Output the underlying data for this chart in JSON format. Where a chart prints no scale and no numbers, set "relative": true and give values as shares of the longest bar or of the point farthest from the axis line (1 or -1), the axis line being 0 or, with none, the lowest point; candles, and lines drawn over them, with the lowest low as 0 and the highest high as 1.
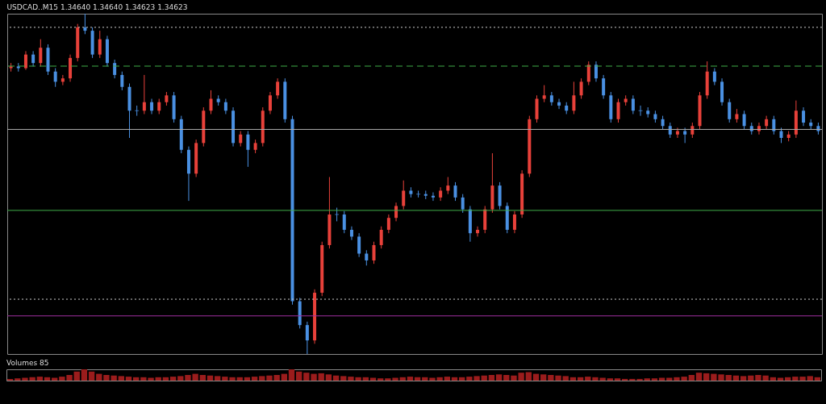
{
  "chart_data": [
    {
      "type": "candlestick",
      "title": "USDCAD..M15 1.34640 1.34640 1.34623 1.34623",
      "relative": true,
      "categories": [
        null,
        null,
        null,
        null,
        null,
        null,
        null,
        null,
        null,
        null,
        null,
        null,
        null,
        null,
        null,
        null,
        null,
        null,
        null,
        null,
        null,
        null,
        null,
        null,
        null,
        null,
        null,
        null,
        null,
        null,
        null,
        null,
        null,
        null,
        null,
        null,
        null,
        null,
        null,
        null,
        null,
        null,
        null,
        null,
        null,
        null,
        null,
        null,
        null,
        null,
        null,
        null,
        null,
        null,
        null,
        null,
        null,
        null,
        null,
        null,
        null,
        null,
        null,
        null,
        null,
        null,
        null,
        null,
        null,
        null,
        null,
        null,
        null,
        null,
        null,
        null,
        null,
        null,
        null,
        null,
        null,
        null,
        null,
        null,
        null,
        null,
        null,
        null,
        null,
        null,
        null,
        null,
        null,
        null,
        null,
        null,
        null,
        null,
        null,
        null,
        null,
        null,
        null,
        null,
        null,
        null,
        null,
        null,
        null,
        null
      ],
      "ohlc": [
        [
          0.84,
          0.855,
          0.83,
          0.845
        ],
        [
          0.845,
          0.855,
          0.83,
          0.84
        ],
        [
          0.84,
          0.89,
          0.835,
          0.88
        ],
        [
          0.88,
          0.89,
          0.845,
          0.855
        ],
        [
          0.855,
          0.925,
          0.845,
          0.9
        ],
        [
          0.9,
          0.91,
          0.82,
          0.83
        ],
        [
          0.83,
          0.84,
          0.785,
          0.8
        ],
        [
          0.8,
          0.82,
          0.79,
          0.81
        ],
        [
          0.81,
          0.88,
          0.8,
          0.87
        ],
        [
          0.87,
          0.97,
          0.86,
          0.96
        ],
        [
          0.96,
          1,
          0.94,
          0.95
        ],
        [
          0.95,
          0.96,
          0.87,
          0.88
        ],
        [
          0.88,
          0.95,
          0.87,
          0.925
        ],
        [
          0.925,
          0.935,
          0.845,
          0.855
        ],
        [
          0.855,
          0.865,
          0.81,
          0.82
        ],
        [
          0.82,
          0.83,
          0.775,
          0.785
        ],
        [
          0.785,
          0.795,
          0.635,
          0.715
        ],
        [
          0.715,
          0.73,
          0.7,
          0.715
        ],
        [
          0.715,
          0.82,
          0.705,
          0.74
        ],
        [
          0.74,
          0.75,
          0.705,
          0.715
        ],
        [
          0.715,
          0.75,
          0.705,
          0.74
        ],
        [
          0.74,
          0.77,
          0.73,
          0.76
        ],
        [
          0.76,
          0.77,
          0.68,
          0.69
        ],
        [
          0.69,
          0.7,
          0.59,
          0.6
        ],
        [
          0.6,
          0.61,
          0.45,
          0.53
        ],
        [
          0.53,
          0.63,
          0.52,
          0.62
        ],
        [
          0.62,
          0.725,
          0.61,
          0.715
        ],
        [
          0.715,
          0.775,
          0.705,
          0.75
        ],
        [
          0.75,
          0.76,
          0.73,
          0.74
        ],
        [
          0.74,
          0.75,
          0.705,
          0.715
        ],
        [
          0.715,
          0.725,
          0.61,
          0.62
        ],
        [
          0.62,
          0.655,
          0.61,
          0.645
        ],
        [
          0.645,
          0.655,
          0.55,
          0.6
        ],
        [
          0.6,
          0.63,
          0.59,
          0.62
        ],
        [
          0.62,
          0.725,
          0.61,
          0.715
        ],
        [
          0.715,
          0.77,
          0.705,
          0.76
        ],
        [
          0.76,
          0.81,
          0.75,
          0.8
        ],
        [
          0.8,
          0.81,
          0.68,
          0.69
        ],
        [
          0.69,
          0.7,
          0.145,
          0.155
        ],
        [
          0.155,
          0.165,
          0.075,
          0.085
        ],
        [
          0.085,
          0.095,
          0,
          0.04
        ],
        [
          0.04,
          0.19,
          0.03,
          0.18
        ],
        [
          0.18,
          0.33,
          0.17,
          0.32
        ],
        [
          0.32,
          0.52,
          0.31,
          0.41
        ],
        [
          0.41,
          0.43,
          0.39,
          0.41
        ],
        [
          0.41,
          0.42,
          0.355,
          0.365
        ],
        [
          0.365,
          0.375,
          0.335,
          0.345
        ],
        [
          0.345,
          0.355,
          0.285,
          0.295
        ],
        [
          0.295,
          0.305,
          0.26,
          0.275
        ],
        [
          0.275,
          0.33,
          0.265,
          0.32
        ],
        [
          0.32,
          0.375,
          0.31,
          0.365
        ],
        [
          0.365,
          0.41,
          0.355,
          0.4
        ],
        [
          0.4,
          0.445,
          0.39,
          0.435
        ],
        [
          0.435,
          0.51,
          0.425,
          0.48
        ],
        [
          0.48,
          0.49,
          0.46,
          0.47
        ],
        [
          0.47,
          0.48,
          0.46,
          0.47
        ],
        [
          0.47,
          0.48,
          0.455,
          0.465
        ],
        [
          0.465,
          0.475,
          0.45,
          0.46
        ],
        [
          0.46,
          0.49,
          0.45,
          0.48
        ],
        [
          0.48,
          0.52,
          0.47,
          0.495
        ],
        [
          0.495,
          0.505,
          0.45,
          0.46
        ],
        [
          0.46,
          0.47,
          0.415,
          0.425
        ],
        [
          0.425,
          0.435,
          0.33,
          0.355
        ],
        [
          0.355,
          0.375,
          0.345,
          0.365
        ],
        [
          0.365,
          0.435,
          0.355,
          0.425
        ],
        [
          0.425,
          0.59,
          0.415,
          0.495
        ],
        [
          0.495,
          0.505,
          0.425,
          0.435
        ],
        [
          0.435,
          0.445,
          0.355,
          0.365
        ],
        [
          0.365,
          0.42,
          0.355,
          0.41
        ],
        [
          0.41,
          0.54,
          0.4,
          0.53
        ],
        [
          0.53,
          0.7,
          0.52,
          0.69
        ],
        [
          0.69,
          0.76,
          0.68,
          0.75
        ],
        [
          0.75,
          0.79,
          0.74,
          0.76
        ],
        [
          0.76,
          0.77,
          0.73,
          0.74
        ],
        [
          0.74,
          0.75,
          0.72,
          0.73
        ],
        [
          0.73,
          0.74,
          0.705,
          0.715
        ],
        [
          0.715,
          0.8,
          0.705,
          0.76
        ],
        [
          0.76,
          0.81,
          0.75,
          0.8
        ],
        [
          0.8,
          0.86,
          0.79,
          0.85
        ],
        [
          0.85,
          0.86,
          0.8,
          0.81
        ],
        [
          0.81,
          0.82,
          0.75,
          0.76
        ],
        [
          0.76,
          0.77,
          0.68,
          0.69
        ],
        [
          0.69,
          0.75,
          0.68,
          0.74
        ],
        [
          0.74,
          0.76,
          0.73,
          0.75
        ],
        [
          0.75,
          0.76,
          0.705,
          0.715
        ],
        [
          0.715,
          0.73,
          0.7,
          0.715
        ],
        [
          0.715,
          0.725,
          0.695,
          0.705
        ],
        [
          0.705,
          0.715,
          0.68,
          0.69
        ],
        [
          0.69,
          0.7,
          0.66,
          0.67
        ],
        [
          0.67,
          0.68,
          0.635,
          0.645
        ],
        [
          0.645,
          0.665,
          0.635,
          0.655
        ],
        [
          0.655,
          0.665,
          0.62,
          0.645
        ],
        [
          0.645,
          0.68,
          0.635,
          0.67
        ],
        [
          0.67,
          0.77,
          0.66,
          0.76
        ],
        [
          0.76,
          0.86,
          0.75,
          0.83
        ],
        [
          0.83,
          0.84,
          0.79,
          0.8
        ],
        [
          0.8,
          0.81,
          0.73,
          0.74
        ],
        [
          0.74,
          0.75,
          0.68,
          0.69
        ],
        [
          0.69,
          0.72,
          0.68,
          0.705
        ],
        [
          0.705,
          0.715,
          0.66,
          0.67
        ],
        [
          0.67,
          0.68,
          0.645,
          0.655
        ],
        [
          0.655,
          0.68,
          0.645,
          0.67
        ],
        [
          0.67,
          0.7,
          0.66,
          0.69
        ],
        [
          0.69,
          0.7,
          0.645,
          0.655
        ],
        [
          0.655,
          0.665,
          0.62,
          0.635
        ],
        [
          0.635,
          0.655,
          0.625,
          0.645
        ],
        [
          0.645,
          0.745,
          0.635,
          0.715
        ],
        [
          0.715,
          0.725,
          0.67,
          0.68
        ],
        [
          0.68,
          0.69,
          0.66,
          0.67
        ],
        [
          0.67,
          0.68,
          0.645,
          0.655
        ]
      ],
      "colors": [
        "#e8413a",
        "#4a90e2",
        "#e8413a",
        "#4a90e2",
        "#e8413a",
        "#4a90e2",
        "#4a90e2",
        "#e8413a",
        "#e8413a",
        "#e8413a",
        "#4a90e2",
        "#4a90e2",
        "#e8413a",
        "#4a90e2",
        "#4a90e2",
        "#4a90e2",
        "#4a90e2",
        "#4a90e2",
        "#e8413a",
        "#4a90e2",
        "#e8413a",
        "#e8413a",
        "#4a90e2",
        "#4a90e2",
        "#4a90e2",
        "#e8413a",
        "#e8413a",
        "#e8413a",
        "#4a90e2",
        "#4a90e2",
        "#4a90e2",
        "#e8413a",
        "#4a90e2",
        "#e8413a",
        "#e8413a",
        "#e8413a",
        "#e8413a",
        "#4a90e2",
        "#4a90e2",
        "#4a90e2",
        "#4a90e2",
        "#e8413a",
        "#e8413a",
        "#e8413a",
        "#4a90e2",
        "#4a90e2",
        "#4a90e2",
        "#4a90e2",
        "#4a90e2",
        "#e8413a",
        "#e8413a",
        "#e8413a",
        "#e8413a",
        "#e8413a",
        "#4a90e2",
        "#4a90e2",
        "#4a90e2",
        "#4a90e2",
        "#e8413a",
        "#e8413a",
        "#4a90e2",
        "#4a90e2",
        "#4a90e2",
        "#e8413a",
        "#e8413a",
        "#e8413a",
        "#4a90e2",
        "#4a90e2",
        "#e8413a",
        "#e8413a",
        "#e8413a",
        "#e8413a",
        "#e8413a",
        "#4a90e2",
        "#4a90e2",
        "#4a90e2",
        "#e8413a",
        "#e8413a",
        "#e8413a",
        "#4a90e2",
        "#4a90e2",
        "#4a90e2",
        "#e8413a",
        "#e8413a",
        "#4a90e2",
        "#4a90e2",
        "#4a90e2",
        "#4a90e2",
        "#4a90e2",
        "#4a90e2",
        "#e8413a",
        "#4a90e2",
        "#e8413a",
        "#e8413a",
        "#e8413a",
        "#4a90e2",
        "#4a90e2",
        "#4a90e2",
        "#e8413a",
        "#4a90e2",
        "#4a90e2",
        "#e8413a",
        "#e8413a",
        "#4a90e2",
        "#4a90e2",
        "#e8413a",
        "#e8413a",
        "#4a90e2",
        "#4a90e2",
        "#4a90e2"
      ],
      "ref_lines": [
        {
          "axis": "y",
          "value": 0.96,
          "color": "#cccccc",
          "line_style": "dotted"
        },
        {
          "axis": "y",
          "value": 0.846,
          "color": "#3fae49",
          "line_style": "dashed"
        },
        {
          "axis": "y",
          "value": 0.66,
          "color": "#aaaaaa",
          "line_style": "solid"
        },
        {
          "axis": "y",
          "value": 0.422,
          "color": "#3fae49",
          "line_style": "solid"
        },
        {
          "axis": "y",
          "value": 0.161,
          "color": "#cccccc",
          "line_style": "dotted"
        },
        {
          "axis": "y",
          "value": 0.112,
          "color": "#a030a0",
          "line_style": "solid"
        }
      ]
    },
    {
      "type": "bar",
      "title": "Volumes 85",
      "relative": true,
      "categories": [
        null,
        null,
        null,
        null,
        null,
        null,
        null,
        null,
        null,
        null,
        null,
        null,
        null,
        null,
        null,
        null,
        null,
        null,
        null,
        null,
        null,
        null,
        null,
        null,
        null,
        null,
        null,
        null,
        null,
        null,
        null,
        null,
        null,
        null,
        null,
        null,
        null,
        null,
        null,
        null,
        null,
        null,
        null,
        null,
        null,
        null,
        null,
        null,
        null,
        null,
        null,
        null,
        null,
        null,
        null,
        null,
        null,
        null,
        null,
        null,
        null,
        null,
        null,
        null,
        null,
        null,
        null,
        null,
        null,
        null,
        null,
        null,
        null,
        null,
        null,
        null,
        null,
        null,
        null,
        null,
        null,
        null,
        null,
        null,
        null,
        null,
        null,
        null,
        null,
        null,
        null,
        null,
        null,
        null,
        null,
        null,
        null,
        null,
        null,
        null,
        null,
        null,
        null,
        null,
        null,
        null,
        null,
        null,
        null,
        null
      ],
      "series": [
        {
          "color": "#9b1c1c",
          "values": [
            0.15,
            0.2,
            0.25,
            0.3,
            0.35,
            0.3,
            0.25,
            0.35,
            0.5,
            0.8,
            1.0,
            0.8,
            0.6,
            0.5,
            0.45,
            0.4,
            0.35,
            0.3,
            0.3,
            0.25,
            0.3,
            0.3,
            0.35,
            0.4,
            0.5,
            0.6,
            0.5,
            0.45,
            0.4,
            0.35,
            0.3,
            0.3,
            0.3,
            0.35,
            0.4,
            0.45,
            0.5,
            0.6,
            1.0,
            0.8,
            0.7,
            0.6,
            0.65,
            0.55,
            0.45,
            0.4,
            0.35,
            0.3,
            0.3,
            0.25,
            0.2,
            0.2,
            0.25,
            0.3,
            0.35,
            0.3,
            0.3,
            0.25,
            0.3,
            0.35,
            0.3,
            0.3,
            0.35,
            0.4,
            0.45,
            0.5,
            0.55,
            0.5,
            0.45,
            0.7,
            0.75,
            0.6,
            0.55,
            0.5,
            0.45,
            0.4,
            0.3,
            0.3,
            0.35,
            0.3,
            0.25,
            0.2,
            0.2,
            0.15,
            0.15,
            0.15,
            0.2,
            0.2,
            0.25,
            0.25,
            0.3,
            0.35,
            0.5,
            0.7,
            0.65,
            0.6,
            0.55,
            0.5,
            0.45,
            0.4,
            0.45,
            0.5,
            0.45,
            0.3,
            0.25,
            0.3,
            0.35,
            0.35,
            0.4,
            0.3
          ]
        }
      ]
    }
  ]
}
